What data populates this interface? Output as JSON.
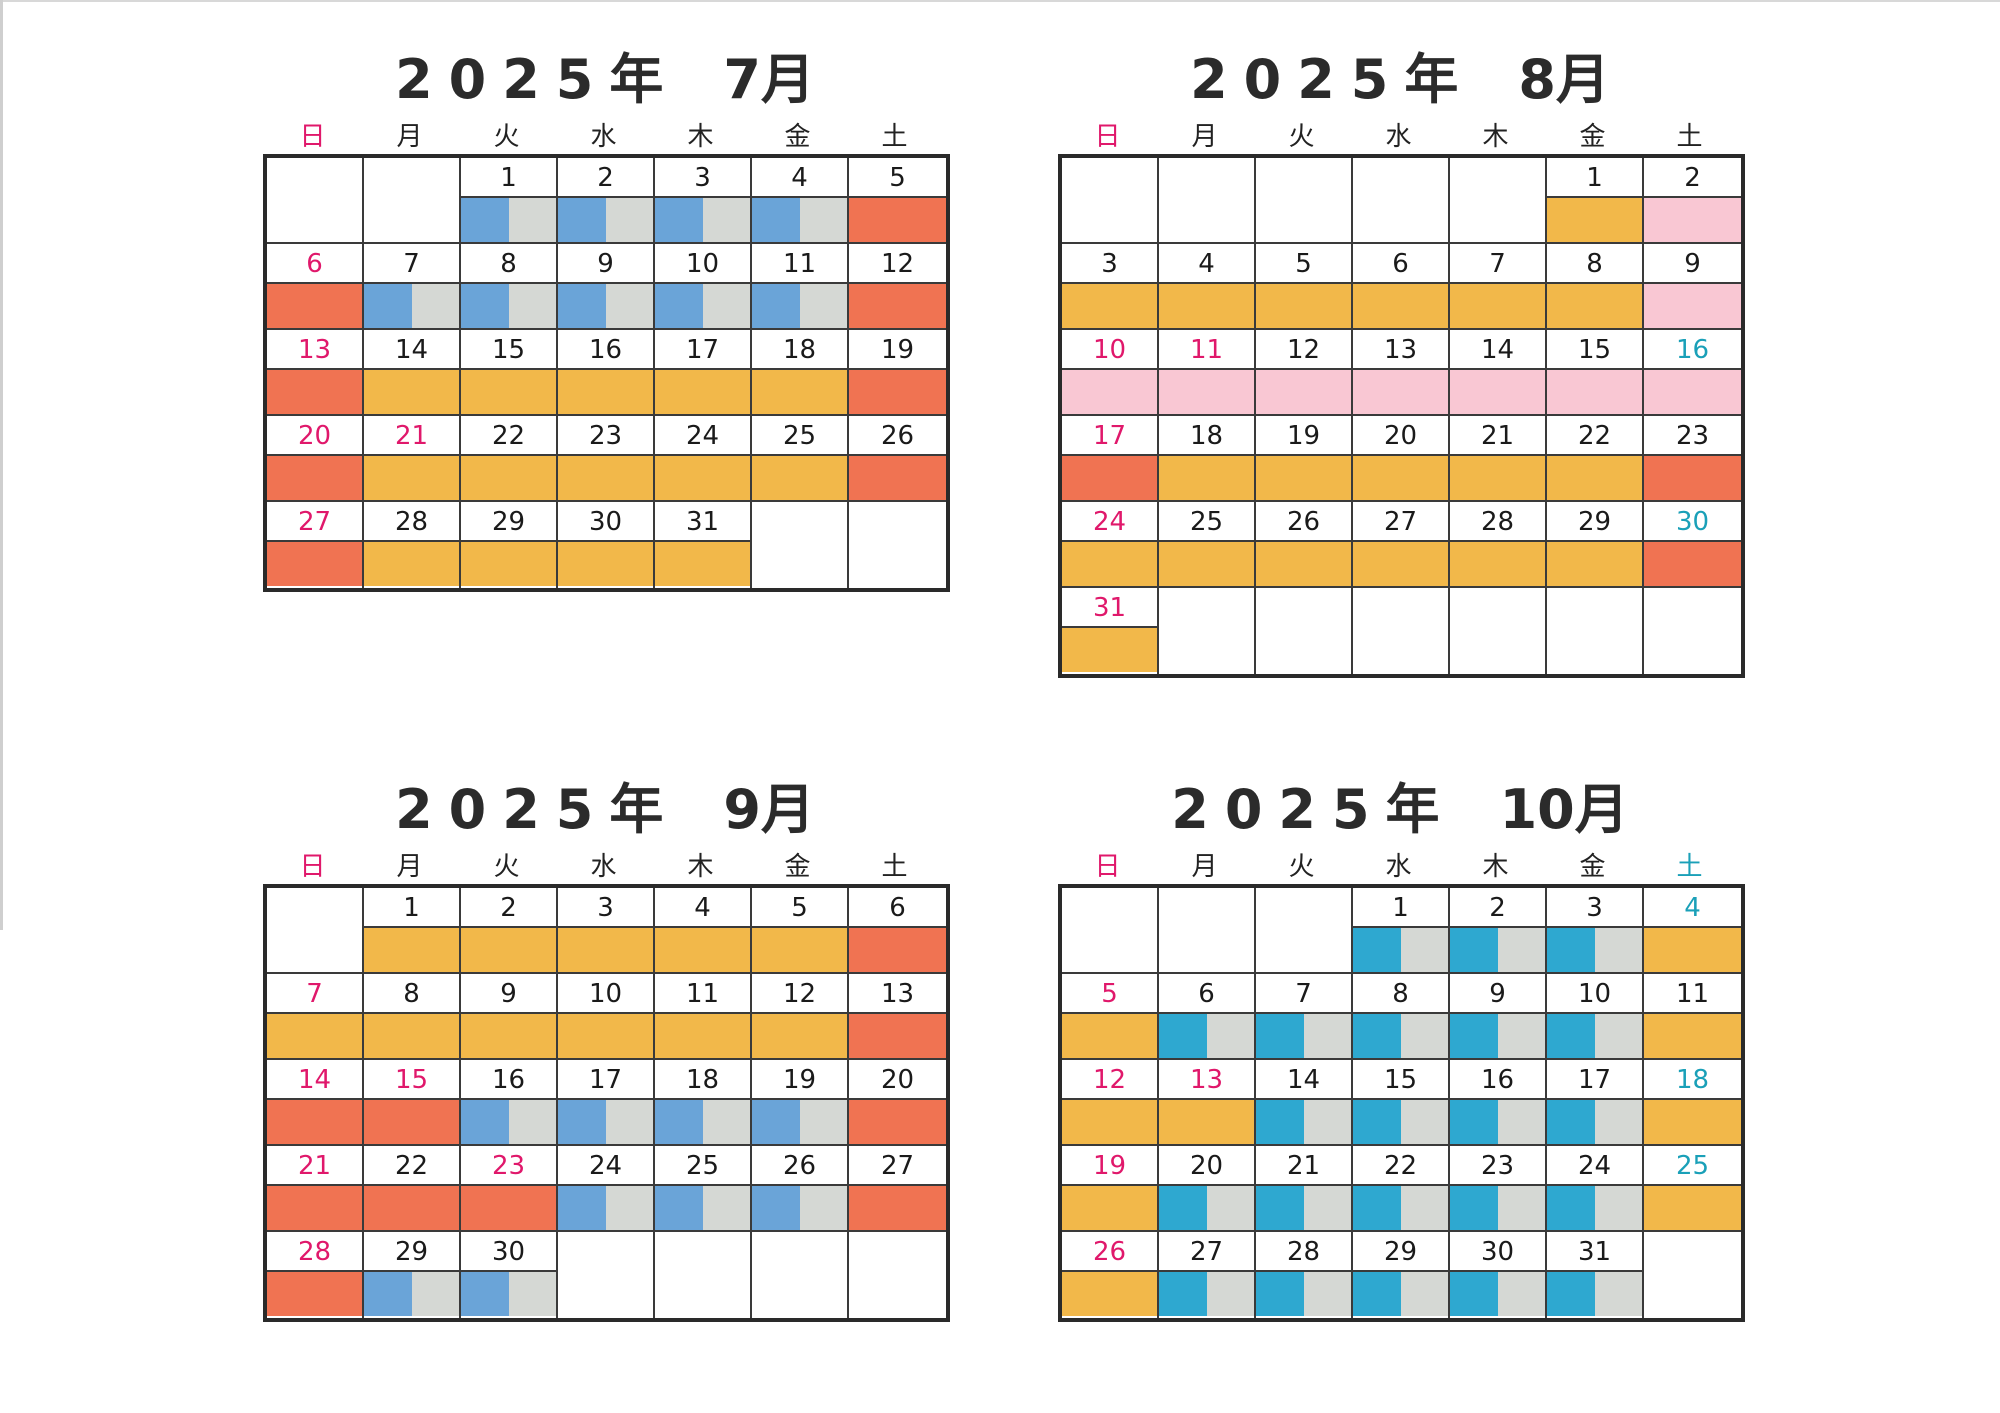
{
  "legend_colors": {
    "orange": "#f2b84a",
    "red": "#f07352",
    "pink": "#f9c7d3",
    "gray": "#d5d8d4",
    "blue": "#6aa4d8",
    "teal": "#2ea8d0"
  },
  "weekday_labels": [
    "日",
    "月",
    "火",
    "水",
    "木",
    "金",
    "土"
  ],
  "months": [
    {
      "year": "2025年",
      "month": "7月",
      "start_weekday": 2,
      "sat_color": "black",
      "days": [
        {
          "d": "1",
          "n": "",
          "c": "blue-gray"
        },
        {
          "d": "2",
          "n": "",
          "c": "blue-gray"
        },
        {
          "d": "3",
          "n": "",
          "c": "blue-gray"
        },
        {
          "d": "4",
          "n": "",
          "c": "blue-gray"
        },
        {
          "d": "5",
          "n": "",
          "c": "red"
        },
        {
          "d": "6",
          "n": "red",
          "c": "red"
        },
        {
          "d": "7",
          "n": "",
          "c": "blue-gray"
        },
        {
          "d": "8",
          "n": "",
          "c": "blue-gray"
        },
        {
          "d": "9",
          "n": "",
          "c": "blue-gray"
        },
        {
          "d": "10",
          "n": "",
          "c": "blue-gray"
        },
        {
          "d": "11",
          "n": "",
          "c": "blue-gray"
        },
        {
          "d": "12",
          "n": "",
          "c": "red"
        },
        {
          "d": "13",
          "n": "red",
          "c": "red"
        },
        {
          "d": "14",
          "n": "",
          "c": "orange"
        },
        {
          "d": "15",
          "n": "",
          "c": "orange"
        },
        {
          "d": "16",
          "n": "",
          "c": "orange"
        },
        {
          "d": "17",
          "n": "",
          "c": "orange"
        },
        {
          "d": "18",
          "n": "",
          "c": "orange"
        },
        {
          "d": "19",
          "n": "",
          "c": "red"
        },
        {
          "d": "20",
          "n": "red",
          "c": "red"
        },
        {
          "d": "21",
          "n": "red",
          "c": "orange"
        },
        {
          "d": "22",
          "n": "",
          "c": "orange"
        },
        {
          "d": "23",
          "n": "",
          "c": "orange"
        },
        {
          "d": "24",
          "n": "",
          "c": "orange"
        },
        {
          "d": "25",
          "n": "",
          "c": "orange"
        },
        {
          "d": "26",
          "n": "",
          "c": "red"
        },
        {
          "d": "27",
          "n": "red",
          "c": "red"
        },
        {
          "d": "28",
          "n": "",
          "c": "orange"
        },
        {
          "d": "29",
          "n": "",
          "c": "orange"
        },
        {
          "d": "30",
          "n": "",
          "c": "orange"
        },
        {
          "d": "31",
          "n": "",
          "c": "orange"
        }
      ]
    },
    {
      "year": "2025年",
      "month": "8月",
      "start_weekday": 5,
      "sat_color": "black",
      "days": [
        {
          "d": "1",
          "n": "",
          "c": "orange"
        },
        {
          "d": "2",
          "n": "",
          "c": "pink"
        },
        {
          "d": "3",
          "n": "",
          "c": "orange"
        },
        {
          "d": "4",
          "n": "",
          "c": "orange"
        },
        {
          "d": "5",
          "n": "",
          "c": "orange"
        },
        {
          "d": "6",
          "n": "",
          "c": "orange"
        },
        {
          "d": "7",
          "n": "",
          "c": "orange"
        },
        {
          "d": "8",
          "n": "",
          "c": "orange"
        },
        {
          "d": "9",
          "n": "",
          "c": "pink"
        },
        {
          "d": "10",
          "n": "red",
          "c": "pink"
        },
        {
          "d": "11",
          "n": "red",
          "c": "pink"
        },
        {
          "d": "12",
          "n": "",
          "c": "pink"
        },
        {
          "d": "13",
          "n": "",
          "c": "pink"
        },
        {
          "d": "14",
          "n": "",
          "c": "pink"
        },
        {
          "d": "15",
          "n": "",
          "c": "pink"
        },
        {
          "d": "16",
          "n": "blue",
          "c": "pink"
        },
        {
          "d": "17",
          "n": "red",
          "c": "red"
        },
        {
          "d": "18",
          "n": "",
          "c": "orange"
        },
        {
          "d": "19",
          "n": "",
          "c": "orange"
        },
        {
          "d": "20",
          "n": "",
          "c": "orange"
        },
        {
          "d": "21",
          "n": "",
          "c": "orange"
        },
        {
          "d": "22",
          "n": "",
          "c": "orange"
        },
        {
          "d": "23",
          "n": "",
          "c": "red"
        },
        {
          "d": "24",
          "n": "red",
          "c": "orange"
        },
        {
          "d": "25",
          "n": "",
          "c": "orange"
        },
        {
          "d": "26",
          "n": "",
          "c": "orange"
        },
        {
          "d": "27",
          "n": "",
          "c": "orange"
        },
        {
          "d": "28",
          "n": "",
          "c": "orange"
        },
        {
          "d": "29",
          "n": "",
          "c": "orange"
        },
        {
          "d": "30",
          "n": "blue",
          "c": "red"
        },
        {
          "d": "31",
          "n": "red",
          "c": "orange"
        }
      ]
    },
    {
      "year": "2025年",
      "month": "9月",
      "start_weekday": 1,
      "sat_color": "black",
      "days": [
        {
          "d": "1",
          "n": "",
          "c": "orange"
        },
        {
          "d": "2",
          "n": "",
          "c": "orange"
        },
        {
          "d": "3",
          "n": "",
          "c": "orange"
        },
        {
          "d": "4",
          "n": "",
          "c": "orange"
        },
        {
          "d": "5",
          "n": "",
          "c": "orange"
        },
        {
          "d": "6",
          "n": "",
          "c": "red"
        },
        {
          "d": "7",
          "n": "red",
          "c": "orange"
        },
        {
          "d": "8",
          "n": "",
          "c": "orange"
        },
        {
          "d": "9",
          "n": "",
          "c": "orange"
        },
        {
          "d": "10",
          "n": "",
          "c": "orange"
        },
        {
          "d": "11",
          "n": "",
          "c": "orange"
        },
        {
          "d": "12",
          "n": "",
          "c": "orange"
        },
        {
          "d": "13",
          "n": "",
          "c": "red"
        },
        {
          "d": "14",
          "n": "red",
          "c": "red"
        },
        {
          "d": "15",
          "n": "red",
          "c": "red"
        },
        {
          "d": "16",
          "n": "",
          "c": "blue-gray"
        },
        {
          "d": "17",
          "n": "",
          "c": "blue-gray"
        },
        {
          "d": "18",
          "n": "",
          "c": "blue-gray"
        },
        {
          "d": "19",
          "n": "",
          "c": "blue-gray"
        },
        {
          "d": "20",
          "n": "",
          "c": "red"
        },
        {
          "d": "21",
          "n": "red",
          "c": "red"
        },
        {
          "d": "22",
          "n": "",
          "c": "red"
        },
        {
          "d": "23",
          "n": "red",
          "c": "red"
        },
        {
          "d": "24",
          "n": "",
          "c": "blue-gray"
        },
        {
          "d": "25",
          "n": "",
          "c": "blue-gray"
        },
        {
          "d": "26",
          "n": "",
          "c": "blue-gray"
        },
        {
          "d": "27",
          "n": "",
          "c": "red"
        },
        {
          "d": "28",
          "n": "red",
          "c": "red"
        },
        {
          "d": "29",
          "n": "",
          "c": "blue-gray"
        },
        {
          "d": "30",
          "n": "",
          "c": "blue-gray"
        }
      ]
    },
    {
      "year": "2025年",
      "month": "10月",
      "start_weekday": 3,
      "sat_color": "blue",
      "days": [
        {
          "d": "1",
          "n": "",
          "c": "teal-gray"
        },
        {
          "d": "2",
          "n": "",
          "c": "teal-gray"
        },
        {
          "d": "3",
          "n": "",
          "c": "teal-gray"
        },
        {
          "d": "4",
          "n": "blue",
          "c": "orange"
        },
        {
          "d": "5",
          "n": "red",
          "c": "orange"
        },
        {
          "d": "6",
          "n": "",
          "c": "teal-gray"
        },
        {
          "d": "7",
          "n": "",
          "c": "teal-gray"
        },
        {
          "d": "8",
          "n": "",
          "c": "teal-gray"
        },
        {
          "d": "9",
          "n": "",
          "c": "teal-gray"
        },
        {
          "d": "10",
          "n": "",
          "c": "teal-gray"
        },
        {
          "d": "11",
          "n": "",
          "c": "orange"
        },
        {
          "d": "12",
          "n": "red",
          "c": "orange"
        },
        {
          "d": "13",
          "n": "red",
          "c": "orange"
        },
        {
          "d": "14",
          "n": "",
          "c": "teal-gray"
        },
        {
          "d": "15",
          "n": "",
          "c": "teal-gray"
        },
        {
          "d": "16",
          "n": "",
          "c": "teal-gray"
        },
        {
          "d": "17",
          "n": "",
          "c": "teal-gray"
        },
        {
          "d": "18",
          "n": "blue",
          "c": "orange"
        },
        {
          "d": "19",
          "n": "red",
          "c": "orange"
        },
        {
          "d": "20",
          "n": "",
          "c": "teal-gray"
        },
        {
          "d": "21",
          "n": "",
          "c": "teal-gray"
        },
        {
          "d": "22",
          "n": "",
          "c": "teal-gray"
        },
        {
          "d": "23",
          "n": "",
          "c": "teal-gray"
        },
        {
          "d": "24",
          "n": "",
          "c": "teal-gray"
        },
        {
          "d": "25",
          "n": "blue",
          "c": "orange"
        },
        {
          "d": "26",
          "n": "red",
          "c": "orange"
        },
        {
          "d": "27",
          "n": "",
          "c": "teal-gray"
        },
        {
          "d": "28",
          "n": "",
          "c": "teal-gray"
        },
        {
          "d": "29",
          "n": "",
          "c": "teal-gray"
        },
        {
          "d": "30",
          "n": "",
          "c": "teal-gray"
        },
        {
          "d": "31",
          "n": "",
          "c": "teal-gray"
        }
      ]
    }
  ]
}
